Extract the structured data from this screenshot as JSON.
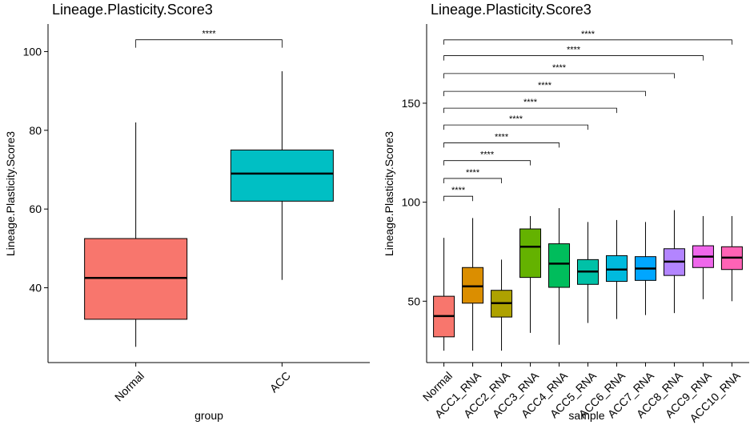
{
  "chart_data": [
    {
      "type": "box",
      "title": "Lineage.Plasticity.Score3",
      "xlabel": "group",
      "ylabel": "Lineage.Plasticity.Score3",
      "ylim": [
        21,
        107
      ],
      "yticks": [
        40,
        60,
        80,
        100
      ],
      "categories": [
        "Normal",
        "ACC"
      ],
      "boxes": [
        {
          "label": "Normal",
          "min": 25,
          "q1": 32,
          "median": 42.5,
          "q3": 52.5,
          "max": 82,
          "color": "#F8766D"
        },
        {
          "label": "ACC",
          "min": 42,
          "q1": 62,
          "median": 69,
          "q3": 75,
          "max": 95,
          "color": "#00BFC4"
        }
      ],
      "comparisons": [
        {
          "from": 0,
          "to": 1,
          "y": 103,
          "label": "****"
        }
      ]
    },
    {
      "type": "box",
      "title": "Lineage.Plasticity.Score3",
      "xlabel": "sample",
      "ylabel": "Lineage.Plasticity.Score3",
      "ylim": [
        19,
        190
      ],
      "yticks": [
        50,
        100,
        150
      ],
      "categories": [
        "Normal",
        "ACC1_RNA",
        "ACC2_RNA",
        "ACC3_RNA",
        "ACC4_RNA",
        "ACC5_RNA",
        "ACC6_RNA",
        "ACC7_RNA",
        "ACC8_RNA",
        "ACC9_RNA",
        "ACC10_RNA"
      ],
      "boxes": [
        {
          "label": "Normal",
          "min": 25,
          "q1": 32,
          "median": 42.5,
          "q3": 52.5,
          "max": 82,
          "color": "#F8766D"
        },
        {
          "label": "ACC1_RNA",
          "min": 25,
          "q1": 49,
          "median": 57.5,
          "q3": 67,
          "max": 92,
          "color": "#DB8E00"
        },
        {
          "label": "ACC2_RNA",
          "min": 25,
          "q1": 42,
          "median": 49,
          "q3": 55.5,
          "max": 71,
          "color": "#AEA200"
        },
        {
          "label": "ACC3_RNA",
          "min": 34,
          "q1": 62,
          "median": 77.5,
          "q3": 86.5,
          "max": 93,
          "color": "#64B200"
        },
        {
          "label": "ACC4_RNA",
          "min": 28,
          "q1": 57,
          "median": 69,
          "q3": 79,
          "max": 97,
          "color": "#00BD5C"
        },
        {
          "label": "ACC5_RNA",
          "min": 39,
          "q1": 58.5,
          "median": 65,
          "q3": 71,
          "max": 90,
          "color": "#00C1A7"
        },
        {
          "label": "ACC6_RNA",
          "min": 41,
          "q1": 60,
          "median": 66,
          "q3": 73,
          "max": 91,
          "color": "#00BADE"
        },
        {
          "label": "ACC7_RNA",
          "min": 43,
          "q1": 60.5,
          "median": 66.5,
          "q3": 72.5,
          "max": 90,
          "color": "#00A6FF"
        },
        {
          "label": "ACC8_RNA",
          "min": 44,
          "q1": 63,
          "median": 70,
          "q3": 76.5,
          "max": 96,
          "color": "#B385FF"
        },
        {
          "label": "ACC9_RNA",
          "min": 51,
          "q1": 67,
          "median": 72.5,
          "q3": 78,
          "max": 93,
          "color": "#EF67EB"
        },
        {
          "label": "ACC10_RNA",
          "min": 50,
          "q1": 66,
          "median": 72,
          "q3": 77.5,
          "max": 93,
          "color": "#FF63B6"
        }
      ],
      "comparisons": [
        {
          "from": 0,
          "to": 1,
          "y": 103,
          "label": "****"
        },
        {
          "from": 0,
          "to": 2,
          "y": 112,
          "label": "****"
        },
        {
          "from": 0,
          "to": 3,
          "y": 121,
          "label": "****"
        },
        {
          "from": 0,
          "to": 4,
          "y": 130,
          "label": "****"
        },
        {
          "from": 0,
          "to": 5,
          "y": 139,
          "label": "****"
        },
        {
          "from": 0,
          "to": 6,
          "y": 147.5,
          "label": "****"
        },
        {
          "from": 0,
          "to": 7,
          "y": 156,
          "label": "****"
        },
        {
          "from": 0,
          "to": 8,
          "y": 165,
          "label": "****"
        },
        {
          "from": 0,
          "to": 9,
          "y": 174,
          "label": "****"
        },
        {
          "from": 0,
          "to": 10,
          "y": 182,
          "label": "****"
        }
      ]
    }
  ]
}
